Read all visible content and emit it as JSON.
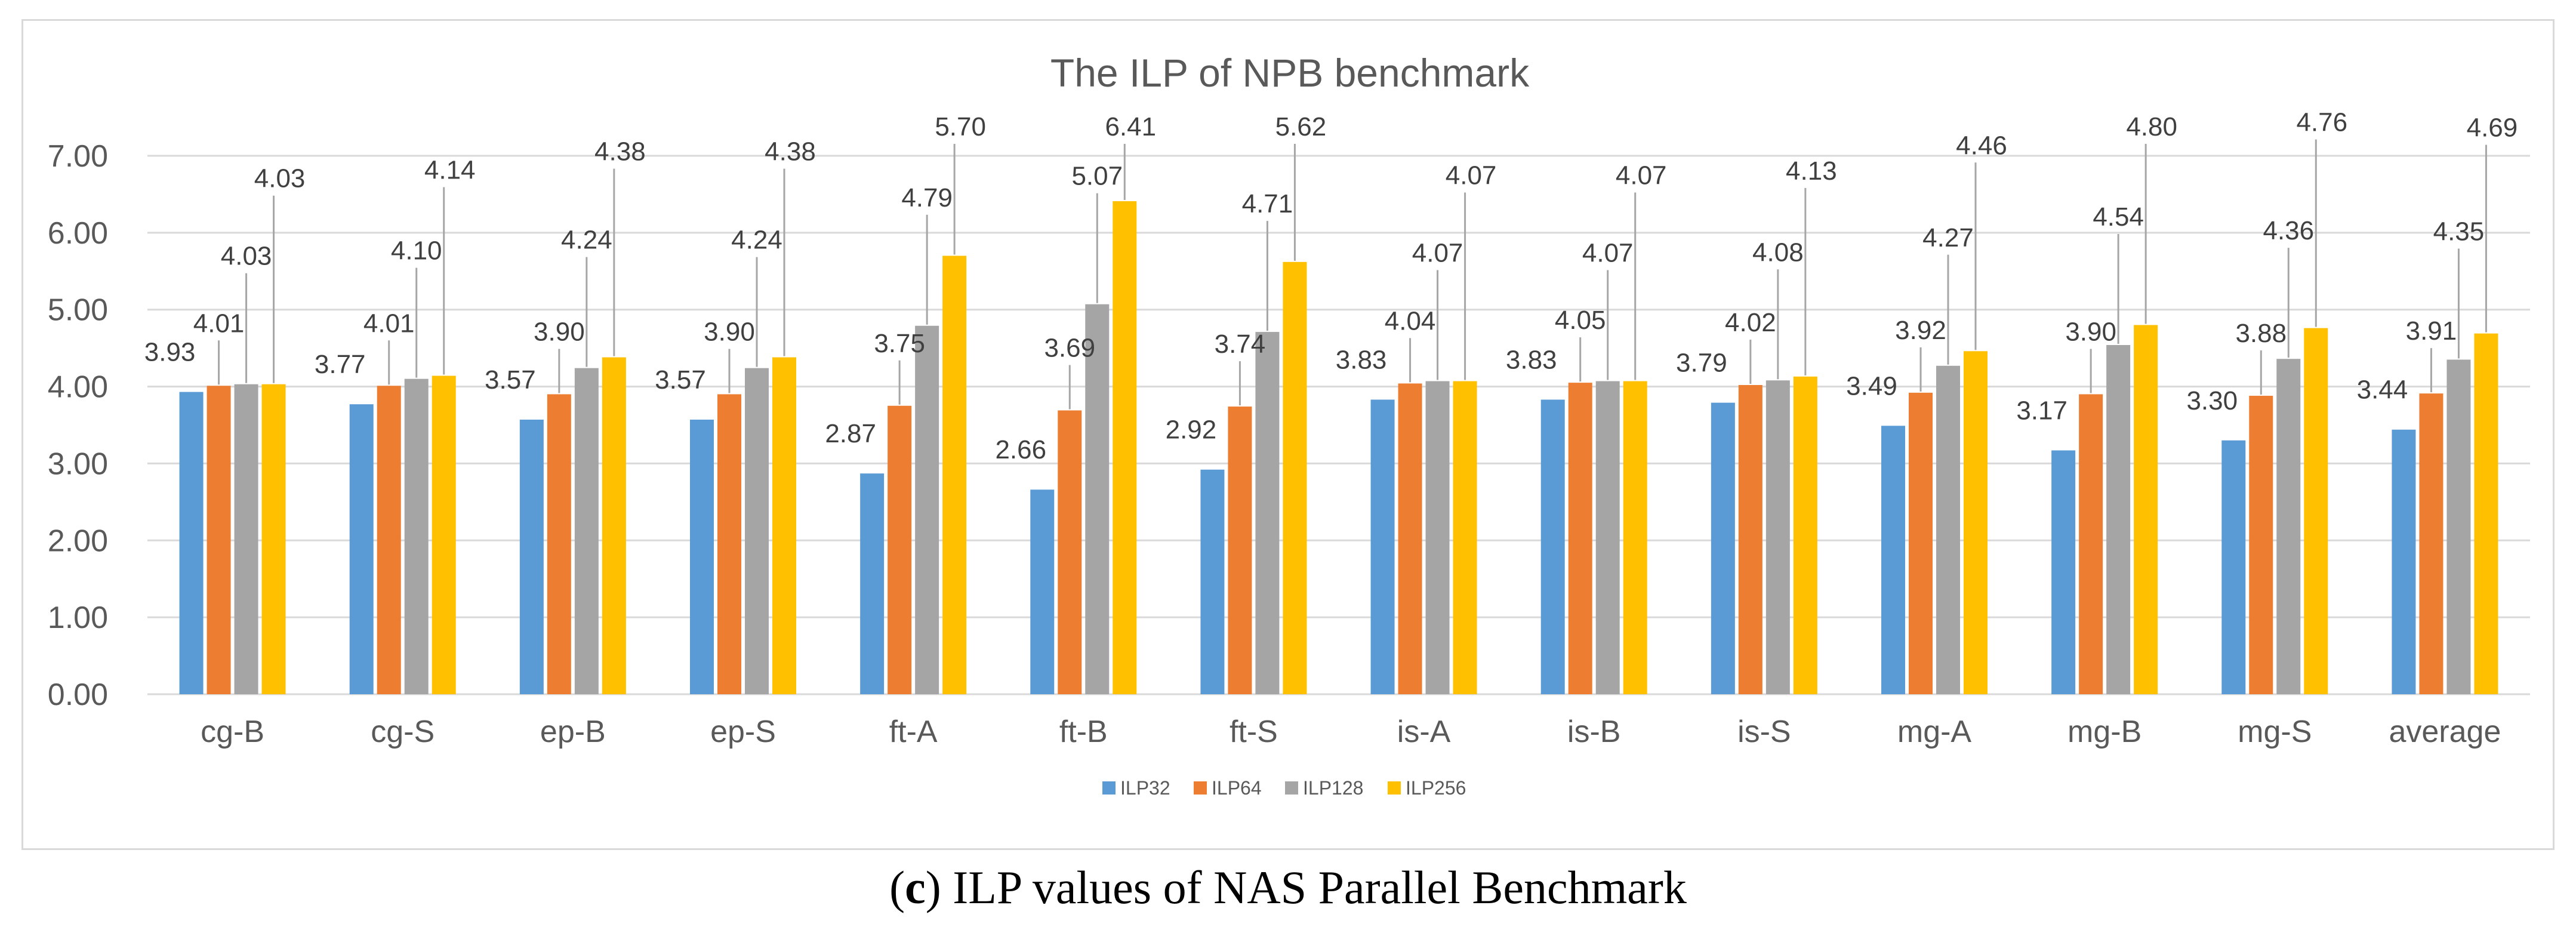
{
  "chart_data": {
    "type": "bar",
    "title": "The ILP of NPB benchmark",
    "xlabel": "",
    "ylabel": "",
    "ylim": [
      0,
      7
    ],
    "yticks": [
      "0.00",
      "1.00",
      "2.00",
      "3.00",
      "4.00",
      "5.00",
      "6.00",
      "7.00"
    ],
    "grid": true,
    "legend_position": "bottom",
    "categories": [
      "cg-B",
      "cg-S",
      "ep-B",
      "ep-S",
      "ft-A",
      "ft-B",
      "ft-S",
      "is-A",
      "is-B",
      "is-S",
      "mg-A",
      "mg-B",
      "mg-S",
      "average"
    ],
    "series": [
      {
        "name": "ILP32",
        "color": "#5b9bd5",
        "values": [
          3.93,
          3.77,
          3.57,
          3.57,
          2.87,
          2.66,
          2.92,
          3.83,
          3.83,
          3.79,
          3.49,
          3.17,
          3.3,
          3.44
        ],
        "labels": [
          "3.93",
          "3.77",
          "3.57",
          "3.57",
          "2.87",
          "2.66",
          "2.92",
          "3.83",
          "3.83",
          "3.79",
          "3.49",
          "3.17",
          "3.30",
          "3.44"
        ]
      },
      {
        "name": "ILP64",
        "color": "#ed7d31",
        "values": [
          4.01,
          4.01,
          3.9,
          3.9,
          3.75,
          3.69,
          3.74,
          4.04,
          4.05,
          4.02,
          3.92,
          3.9,
          3.88,
          3.91
        ],
        "labels": [
          "4.01",
          "4.01",
          "3.90",
          "3.90",
          "3.75",
          "3.69",
          "3.74",
          "4.04",
          "4.05",
          "4.02",
          "3.92",
          "3.90",
          "3.88",
          "3.91"
        ]
      },
      {
        "name": "ILP128",
        "color": "#a5a5a5",
        "values": [
          4.03,
          4.1,
          4.24,
          4.24,
          4.79,
          5.07,
          4.71,
          4.07,
          4.07,
          4.08,
          4.27,
          4.54,
          4.36,
          4.35
        ],
        "labels": [
          "4.03",
          "4.10",
          "4.24",
          "4.24",
          "4.79",
          "5.07",
          "4.71",
          "4.07",
          "4.07",
          "4.08",
          "4.27",
          "4.54",
          "4.36",
          "4.35"
        ]
      },
      {
        "name": "ILP256",
        "color": "#ffc000",
        "values": [
          4.03,
          4.14,
          4.38,
          4.38,
          5.7,
          6.41,
          5.62,
          4.07,
          4.07,
          4.13,
          4.46,
          4.8,
          4.76,
          4.69
        ],
        "labels": [
          "4.03",
          "4.14",
          "4.38",
          "4.38",
          "5.70",
          "6.41",
          "5.62",
          "4.07",
          "4.07",
          "4.13",
          "4.46",
          "4.80",
          "4.76",
          "4.69"
        ]
      }
    ]
  },
  "caption": {
    "letter": "c",
    "open_paren": "(",
    "close_paren": ")",
    "text": " ILP values of NAS Parallel Benchmark"
  }
}
